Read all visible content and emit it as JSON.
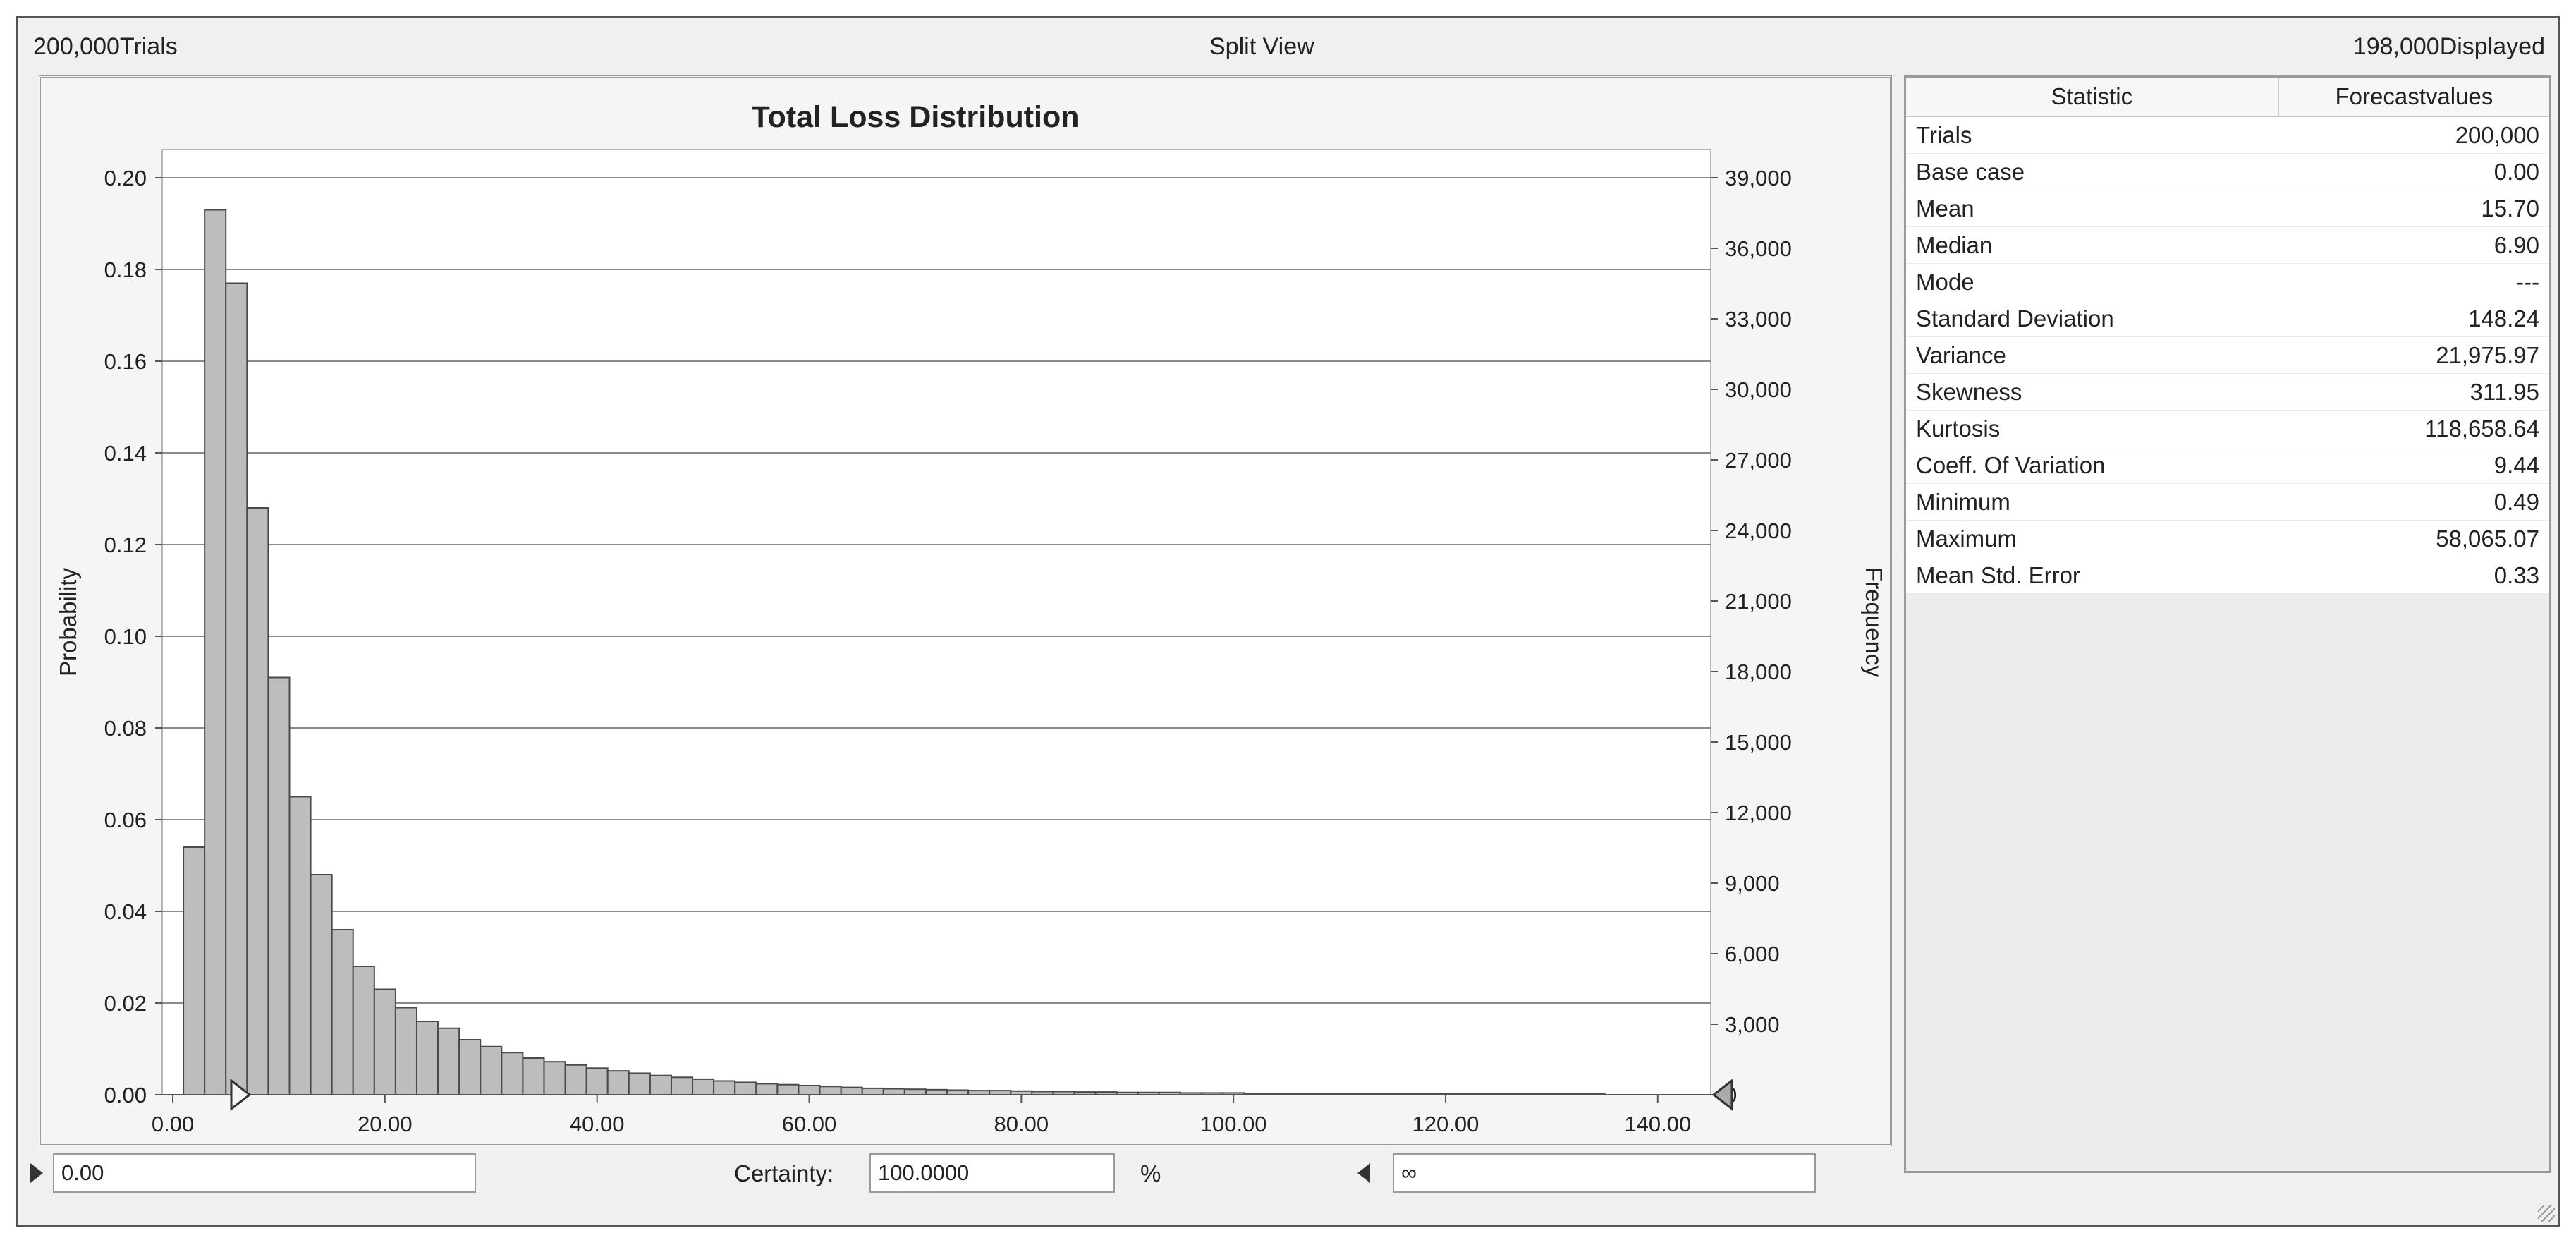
{
  "header": {
    "trials_label": "200,000Trials",
    "view_label": "Split View",
    "displayed_label": "198,000Displayed"
  },
  "chart_data": {
    "type": "bar",
    "title": "Total Loss Distribution",
    "ylabel": "Probability",
    "y2label": "Frequency",
    "xlim": [
      -1,
      145
    ],
    "ylim": [
      0,
      0.2
    ],
    "y2lim": [
      0,
      39000
    ],
    "grid": true,
    "x_ticks": [
      "0.00",
      "20.00",
      "40.00",
      "60.00",
      "80.00",
      "100.00",
      "120.00",
      "140.00"
    ],
    "y_ticks": [
      "0.00",
      "0.02",
      "0.04",
      "0.06",
      "0.08",
      "0.10",
      "0.12",
      "0.14",
      "0.16",
      "0.18",
      "0.20"
    ],
    "y2_ticks": [
      "0",
      "3,000",
      "6,000",
      "9,000",
      "12,000",
      "15,000",
      "18,000",
      "21,000",
      "24,000",
      "27,000",
      "30,000",
      "33,000",
      "36,000",
      "39,000"
    ],
    "bin_width": 2.0,
    "bin_start": 1.0,
    "values": [
      0.054,
      0.193,
      0.177,
      0.128,
      0.091,
      0.065,
      0.048,
      0.036,
      0.028,
      0.023,
      0.019,
      0.016,
      0.0145,
      0.012,
      0.0105,
      0.0092,
      0.008,
      0.0072,
      0.0065,
      0.0058,
      0.0052,
      0.0047,
      0.0042,
      0.0038,
      0.0034,
      0.003,
      0.0027,
      0.0024,
      0.0022,
      0.002,
      0.0018,
      0.0016,
      0.0014,
      0.0013,
      0.0012,
      0.0011,
      0.001,
      0.0009,
      0.0009,
      0.0008,
      0.0007,
      0.0007,
      0.0006,
      0.0006,
      0.0005,
      0.0005,
      0.0005,
      0.0004,
      0.0004,
      0.0004,
      0.0003,
      0.0003,
      0.0003,
      0.0003,
      0.0003,
      0.0002,
      0.0002,
      0.0002,
      0.0002,
      0.0002,
      0.0002,
      0.0002,
      0.0001,
      0.0001,
      0.0001,
      0.0001,
      0.0001
    ]
  },
  "stats": {
    "col_statistic": "Statistic",
    "col_values": "Forecastvalues",
    "rows": [
      {
        "name": "Trials",
        "value": "200,000"
      },
      {
        "name": "Base case",
        "value": "0.00"
      },
      {
        "name": "Mean",
        "value": "15.70"
      },
      {
        "name": "Median",
        "value": "6.90"
      },
      {
        "name": "Mode",
        "value": "---"
      },
      {
        "name": "Standard Deviation",
        "value": "148.24"
      },
      {
        "name": "Variance",
        "value": "21,975.97"
      },
      {
        "name": "Skewness",
        "value": "311.95"
      },
      {
        "name": "Kurtosis",
        "value": "118,658.64"
      },
      {
        "name": "Coeff. Of Variation",
        "value": "9.44"
      },
      {
        "name": "Minimum",
        "value": "0.49"
      },
      {
        "name": "Maximum",
        "value": "58,065.07"
      },
      {
        "name": "Mean Std. Error",
        "value": "0.33"
      }
    ]
  },
  "controls": {
    "left_value": "0.00",
    "certainty_label": "Certainty:",
    "certainty_value": "100.0000",
    "percent_sign": "%",
    "right_value": "∞"
  },
  "colors": {
    "bar_fill": "#bdbdbd",
    "bar_stroke": "#4a4a4a",
    "grid": "#8a8a8a",
    "panel_bg": "#f0f0f0"
  }
}
